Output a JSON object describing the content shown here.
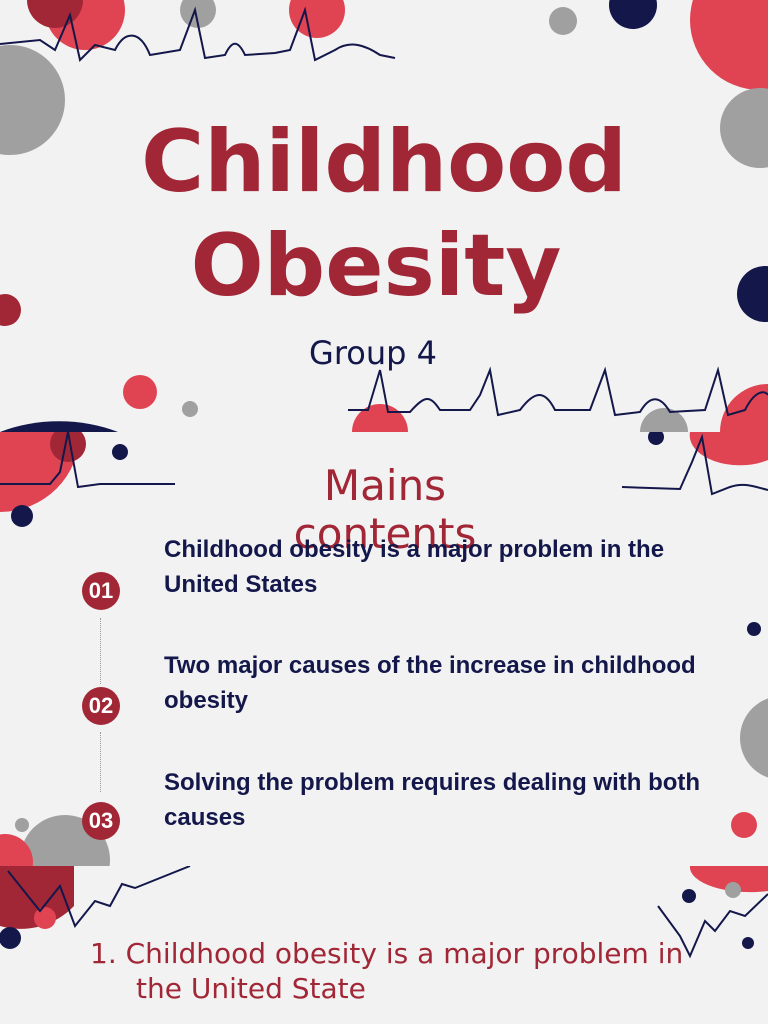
{
  "slide1": {
    "title_line1": "Childhood",
    "title_line2": "Obesity",
    "subtitle": "Group 4"
  },
  "slide2": {
    "heading": "Mains contents",
    "items": [
      {
        "number": "01",
        "text": "Childhood obesity is a major problem in the United States"
      },
      {
        "number": "02",
        "text": "Two major causes of the increase in childhood obesity"
      },
      {
        "number": "03",
        "text": "Solving the problem requires dealing with both causes"
      }
    ]
  },
  "slide3": {
    "line1": "1. Childhood obesity is a major problem in",
    "line2": "the United State"
  },
  "colors": {
    "accent_red": "#a22736",
    "bright_red": "#e04452",
    "navy": "#13174a",
    "gray": "#a0a0a0",
    "background": "#f2f2f2"
  },
  "icons": [
    "heartbeat-line-icon",
    "decorative-circle-icon"
  ]
}
